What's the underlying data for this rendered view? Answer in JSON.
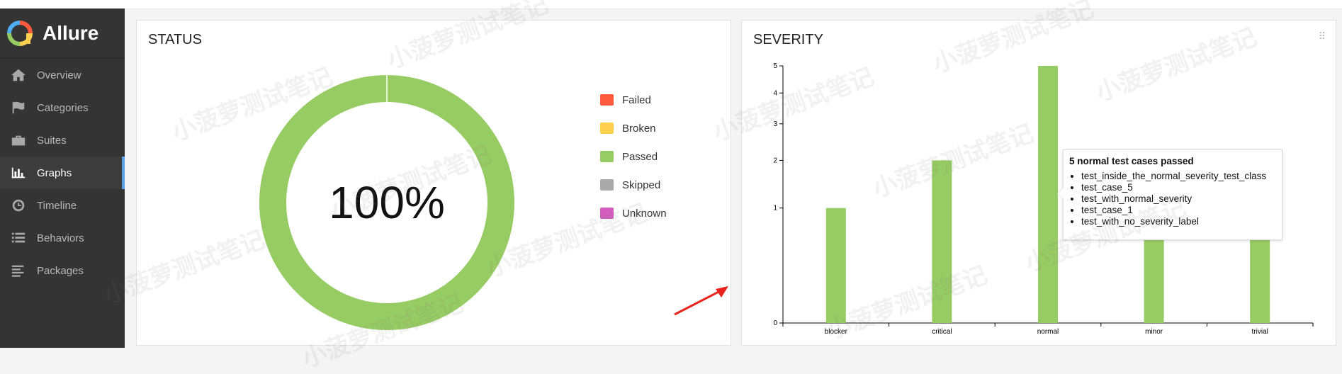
{
  "app": {
    "name": "Allure"
  },
  "sidebar": {
    "items": [
      {
        "label": "Overview",
        "icon": "home-icon",
        "active": false
      },
      {
        "label": "Categories",
        "icon": "flag-icon",
        "active": false
      },
      {
        "label": "Suites",
        "icon": "briefcase-icon",
        "active": false
      },
      {
        "label": "Graphs",
        "icon": "bar-chart-icon",
        "active": true
      },
      {
        "label": "Timeline",
        "icon": "clock-icon",
        "active": false
      },
      {
        "label": "Behaviors",
        "icon": "list-icon",
        "active": false
      },
      {
        "label": "Packages",
        "icon": "align-left-icon",
        "active": false
      }
    ]
  },
  "status": {
    "title": "STATUS",
    "center_label": "100%",
    "legend": [
      {
        "label": "Failed",
        "color": "#fd5a3e"
      },
      {
        "label": "Broken",
        "color": "#ffd050"
      },
      {
        "label": "Passed",
        "color": "#97cc64"
      },
      {
        "label": "Skipped",
        "color": "#aaaaaa"
      },
      {
        "label": "Unknown",
        "color": "#d35ebe"
      }
    ]
  },
  "severity": {
    "title": "SEVERITY",
    "tooltip": {
      "title": "5 normal test cases passed",
      "items": [
        "test_inside_the_normal_severity_test_class",
        "test_case_5",
        "test_with_normal_severity",
        "test_case_1",
        "test_with_no_severity_label"
      ]
    }
  },
  "watermark_text": "小菠萝测试笔记",
  "chart_data": [
    {
      "type": "pie",
      "title": "STATUS",
      "categories": [
        "Failed",
        "Broken",
        "Passed",
        "Skipped",
        "Unknown"
      ],
      "values": [
        0,
        0,
        100,
        0,
        0
      ],
      "colors": [
        "#fd5a3e",
        "#ffd050",
        "#97cc64",
        "#aaaaaa",
        "#d35ebe"
      ],
      "center_text": "100%",
      "legend": "right"
    },
    {
      "type": "bar",
      "title": "SEVERITY",
      "categories": [
        "blocker",
        "critical",
        "normal",
        "minor",
        "trivial"
      ],
      "values": [
        1,
        2,
        5,
        1,
        1
      ],
      "color": "#97cc64",
      "y_ticks": [
        "0",
        "1",
        "2",
        "3",
        "4",
        "5"
      ],
      "ylim": [
        0,
        5
      ],
      "y_scale": "sqrt",
      "grid": false
    }
  ]
}
